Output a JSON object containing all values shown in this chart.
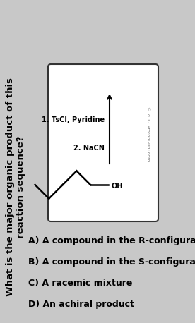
{
  "title_line1": "What is the major organic product of this",
  "title_line2": "reaction sequence?",
  "reaction_label1": "1. TsCl, Pyridine",
  "reaction_label2": "2. NaCN",
  "watermark": "© 2017 ProtonGuru.com",
  "options": [
    "A) A compound in the R-configuration",
    "B) A compound in the S-configuration",
    "C) A racemic mixture",
    "D) An achiral product"
  ],
  "background_color": "#c8c8c8",
  "box_facecolor": "#ffffff",
  "text_color": "#000000",
  "title_fontsize": 9.5,
  "options_fontsize": 9.0,
  "label_fontsize": 7.0,
  "watermark_fontsize": 4.5
}
